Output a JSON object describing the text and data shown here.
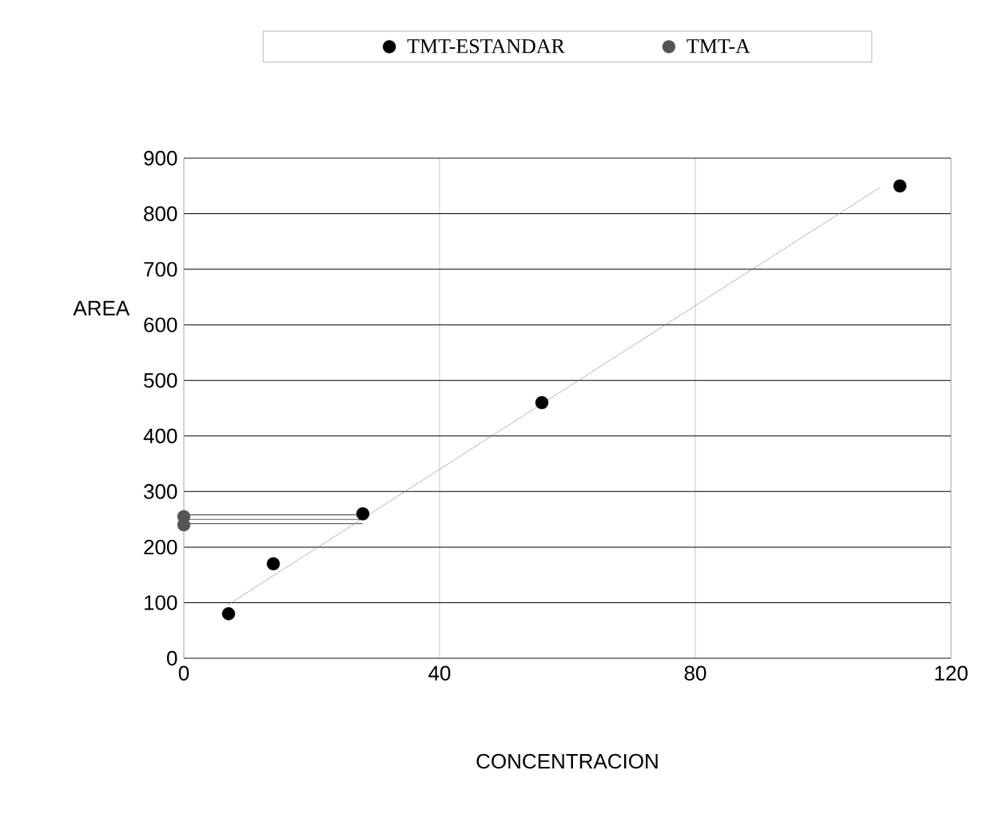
{
  "chart_data": {
    "type": "scatter",
    "xlabel": "CONCENTRACION",
    "ylabel": "AREA",
    "xlim": [
      0,
      120
    ],
    "ylim": [
      0,
      900
    ],
    "xticks": [
      0,
      40,
      80,
      120
    ],
    "yticks": [
      0,
      100,
      200,
      300,
      400,
      500,
      600,
      700,
      800,
      900
    ],
    "grid": true,
    "legend": "top",
    "series": [
      {
        "name": "TMT-ESTANDAR",
        "color": "#000000",
        "marker": "circle",
        "x": [
          7,
          14,
          28,
          56,
          112
        ],
        "values": [
          80,
          170,
          260,
          460,
          850
        ]
      },
      {
        "name": "TMT-A",
        "color": "#555555",
        "marker": "circle",
        "x": [
          0,
          0
        ],
        "values": [
          255,
          240
        ]
      },
      {
        "type": "line",
        "marker": "none",
        "color": "#000000",
        "x": [
          0,
          28
        ],
        "values": [
          258,
          258
        ]
      },
      {
        "type": "line",
        "marker": "none",
        "color": "#000000",
        "x": [
          0,
          28
        ],
        "values": [
          250,
          250
        ]
      },
      {
        "type": "line",
        "marker": "none",
        "color": "#000000",
        "x": [
          0,
          28
        ],
        "values": [
          242,
          242
        ]
      },
      {
        "type": "line",
        "marker": "none",
        "color": "#777777",
        "line_style": "dotted",
        "x": [
          7,
          109
        ],
        "values": [
          97,
          848
        ]
      }
    ]
  }
}
